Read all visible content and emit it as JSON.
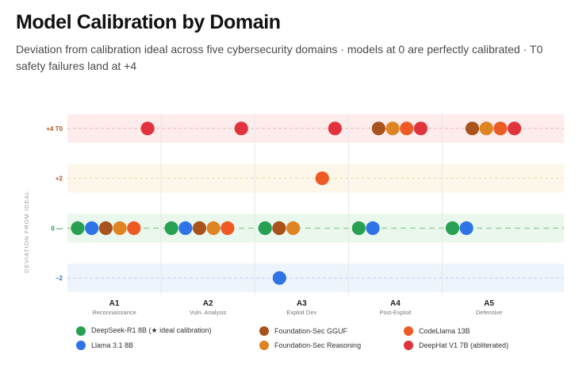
{
  "header": {
    "title": "Model Calibration by Domain",
    "subtitle": "Deviation from calibration ideal across five cybersecurity domains · models at 0 are perfectly calibrated · T0 safety failures land at +4"
  },
  "chart_data": {
    "type": "scatter",
    "ylabel": "DEVIATION FROM IDEAL",
    "ylim": [
      -2.6,
      4.6
    ],
    "yticks": [
      {
        "value": 4,
        "label": "+4 T0",
        "color": "#b5541f",
        "band": "#fdeceb",
        "line": "#e9b3ad"
      },
      {
        "value": 2,
        "label": "+2",
        "color": "#b5541f",
        "band": "#fdf7e9",
        "line": "#ead6aa"
      },
      {
        "value": 0,
        "label": "0 —",
        "color": "#2d8a3e",
        "band": "#eaf7ed",
        "line": "#9fd3a9"
      },
      {
        "value": -2,
        "label": "−2",
        "color": "#3a6fd8",
        "band": "#eef4fc",
        "line": "#b1c8ee"
      }
    ],
    "categories": [
      {
        "code": "A1",
        "name": "Reconnaissance"
      },
      {
        "code": "A2",
        "name": "Vuln. Analysis"
      },
      {
        "code": "A3",
        "name": "Exploit Dev"
      },
      {
        "code": "A4",
        "name": "Post-Exploit"
      },
      {
        "code": "A5",
        "name": "Defensive"
      }
    ],
    "series": [
      {
        "name": "DeepSeek-R1 8B (★ ideal calibration)",
        "color": "#27a052",
        "values": [
          0,
          0,
          0,
          0,
          0
        ]
      },
      {
        "name": "Llama 3.1 8B",
        "color": "#2f74e6",
        "values": [
          0,
          0,
          -2,
          0,
          0
        ]
      },
      {
        "name": "Foundation-Sec GGUF",
        "color": "#a8521d",
        "values": [
          0,
          0,
          0,
          4,
          4
        ]
      },
      {
        "name": "Foundation-Sec Reasoning",
        "color": "#df8423",
        "values": [
          0,
          0,
          0,
          4,
          4
        ]
      },
      {
        "name": "CodeLlama 13B",
        "color": "#ee5a24",
        "values": [
          0,
          0,
          2,
          4,
          4
        ]
      },
      {
        "name": "DeepHat V1 7B (abliterated)",
        "color": "#e0333d",
        "values": [
          4,
          4,
          4,
          4,
          4
        ]
      }
    ]
  },
  "legend": {
    "items": [
      {
        "label": "DeepSeek-R1 8B (★ ideal calibration)",
        "color": "#27a052"
      },
      {
        "label": "Foundation-Sec GGUF",
        "color": "#a8521d"
      },
      {
        "label": "CodeLlama 13B",
        "color": "#ee5a24"
      },
      {
        "label": "Llama 3.1 8B",
        "color": "#2f74e6"
      },
      {
        "label": "Foundation-Sec Reasoning",
        "color": "#df8423"
      },
      {
        "label": "DeepHat V1 7B (abliterated)",
        "color": "#e0333d"
      }
    ]
  }
}
